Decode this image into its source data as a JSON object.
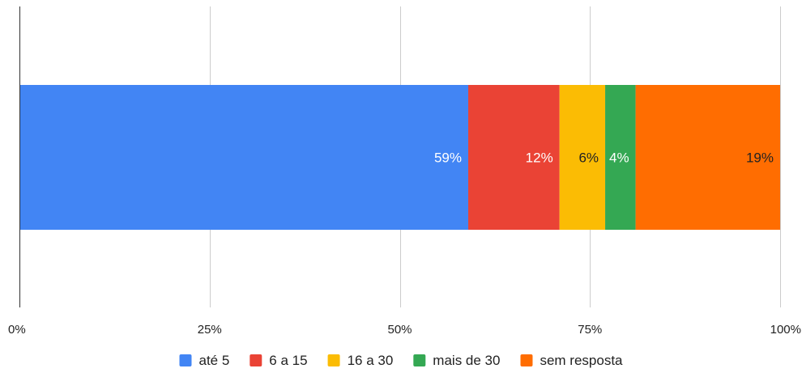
{
  "chart_data": {
    "type": "bar",
    "orientation": "horizontal",
    "stacked": true,
    "percent_stacked": true,
    "categories": [
      ""
    ],
    "series": [
      {
        "name": "até 5",
        "values": [
          59
        ],
        "label": "59%",
        "color": "#4285F4",
        "label_color": "#ffffff"
      },
      {
        "name": "6 a 15",
        "values": [
          12
        ],
        "label": "12%",
        "color": "#EA4335",
        "label_color": "#ffffff"
      },
      {
        "name": "16 a 30",
        "values": [
          6
        ],
        "label": "6%",
        "color": "#FBBC04",
        "label_color": "#222222"
      },
      {
        "name": "mais de 30",
        "values": [
          4
        ],
        "label": "4%",
        "color": "#34A853",
        "label_color": "#ffffff"
      },
      {
        "name": "sem resposta",
        "values": [
          19
        ],
        "label": "19%",
        "color": "#FF6D01",
        "label_color": "#222222"
      }
    ],
    "xlim": [
      0,
      100
    ],
    "xticks": [
      0,
      25,
      50,
      75,
      100
    ],
    "xtick_labels": [
      "0%",
      "25%",
      "50%",
      "75%",
      "100%"
    ],
    "grid": true,
    "legend_position": "bottom",
    "title": "",
    "xlabel": "",
    "ylabel": ""
  }
}
